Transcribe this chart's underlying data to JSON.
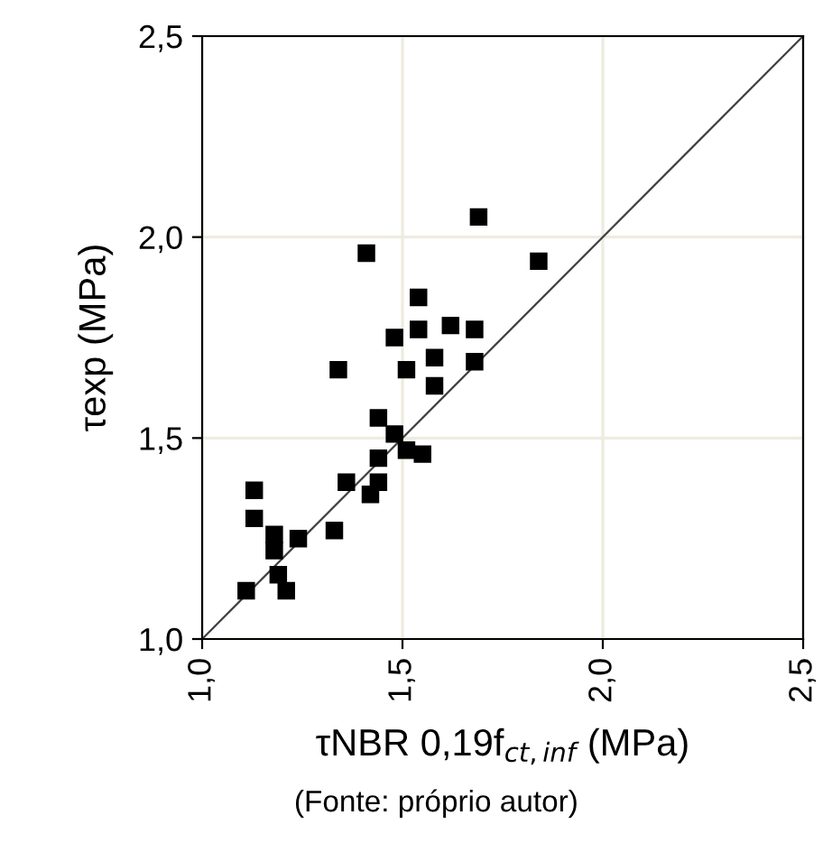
{
  "chart_data": {
    "type": "scatter",
    "xlabel": "τNBR 0,19f$_{ct,inf}$ (MPa)",
    "ylabel": "τexp (MPa)",
    "annotations": [
      "(Fonte: próprio autor)"
    ],
    "series": [
      {
        "color": "#000000",
        "marker": "square",
        "x": [
          1.11,
          1.13,
          1.13,
          1.18,
          1.18,
          1.19,
          1.21,
          1.24,
          1.33,
          1.34,
          1.36,
          1.41,
          1.42,
          1.44,
          1.44,
          1.44,
          1.48,
          1.48,
          1.51,
          1.51,
          1.55,
          1.54,
          1.54,
          1.58,
          1.58,
          1.62,
          1.68,
          1.68,
          1.69,
          1.84
        ],
        "values": [
          1.12,
          1.37,
          1.3,
          1.26,
          1.22,
          1.16,
          1.12,
          1.25,
          1.27,
          1.67,
          1.39,
          1.96,
          1.36,
          1.39,
          1.45,
          1.55,
          1.51,
          1.75,
          1.47,
          1.67,
          1.46,
          1.85,
          1.77,
          1.7,
          1.63,
          1.78,
          1.77,
          1.69,
          2.05,
          1.94
        ]
      },
      {
        "type": "line",
        "color": "#404040",
        "marker": "none",
        "line_style": "solid",
        "x": [
          1.0,
          2.5
        ],
        "values": [
          1.0,
          2.5
        ]
      }
    ],
    "xlim": [
      1.0,
      2.5
    ],
    "ylim": [
      1.0,
      2.5
    ],
    "xticks": [
      {
        "value": 1.0,
        "label": "1,0"
      },
      {
        "value": 1.5,
        "label": "1,5"
      },
      {
        "value": 2.0,
        "label": "2,0"
      },
      {
        "value": 2.5,
        "label": "2,5"
      }
    ],
    "yticks": [
      {
        "value": 1.0,
        "label": "1,0"
      },
      {
        "value": 1.5,
        "label": "1,5"
      },
      {
        "value": 2.0,
        "label": "2,0"
      },
      {
        "value": 2.5,
        "label": "2,5"
      }
    ],
    "grid": true
  }
}
